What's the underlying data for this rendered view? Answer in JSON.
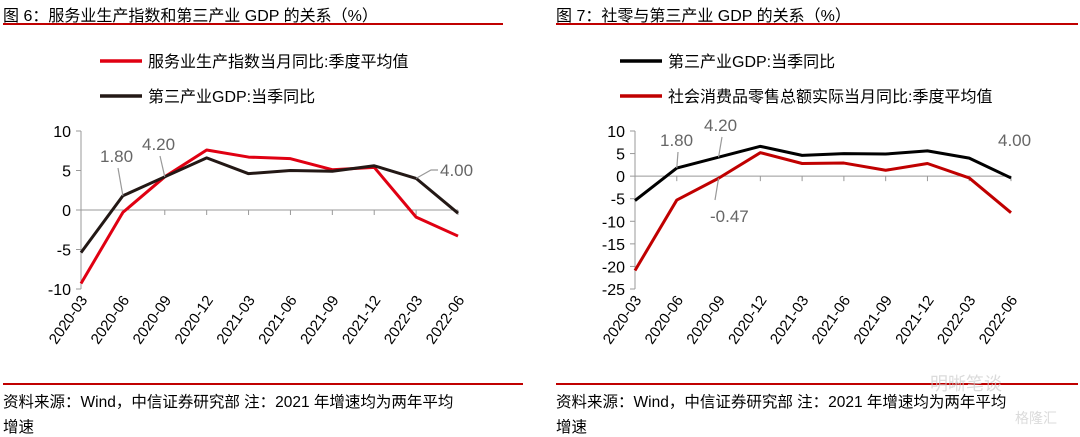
{
  "chart_data": [
    {
      "type": "line",
      "title": "图 6：服务业生产指数和第三产业 GDP 的关系（%）",
      "categories": [
        "2020-03",
        "2020-06",
        "2020-09",
        "2020-12",
        "2021-03",
        "2021-06",
        "2021-09",
        "2021-12",
        "2022-03",
        "2022-06"
      ],
      "ylim": [
        -10,
        10
      ],
      "yticks": [
        "10",
        "5",
        "0",
        "-5",
        "-10"
      ],
      "legend_placement": "top",
      "series": [
        {
          "name": "服务业生产指数当月同比:季度平均值",
          "color": "#e00012",
          "values": [
            -9.3,
            -0.3,
            4.2,
            7.6,
            6.7,
            6.5,
            5.1,
            5.4,
            -0.9,
            -3.3
          ]
        },
        {
          "name": "第三产业GDP:当季同比",
          "color": "#231815",
          "values": [
            -5.4,
            1.8,
            4.2,
            6.6,
            4.6,
            5.0,
            4.9,
            5.6,
            4.0,
            -0.4
          ]
        }
      ],
      "annotations": [
        "1.80",
        "4.20",
        "4.00"
      ],
      "source": "资料来源：Wind，中信证券研究部 注：2021 年增速均为两年平均",
      "source_cont": "增速"
    },
    {
      "type": "line",
      "title": "图 7：社零与第三产业 GDP 的关系（%）",
      "categories": [
        "2020-03",
        "2020-06",
        "2020-09",
        "2020-12",
        "2021-03",
        "2021-06",
        "2021-09",
        "2021-12",
        "2022-03",
        "2022-06"
      ],
      "ylim": [
        -25,
        10
      ],
      "yticks": [
        "10",
        "5",
        "0",
        "-5",
        "-10",
        "-15",
        "-20",
        "-25"
      ],
      "legend_placement": "top",
      "series": [
        {
          "name": "第三产业GDP:当季同比",
          "color": "#000000",
          "values": [
            -5.4,
            1.8,
            4.2,
            6.6,
            4.6,
            5.0,
            4.9,
            5.6,
            4.0,
            -0.4
          ]
        },
        {
          "name": "社会消费品零售总额实际当月同比:季度平均值",
          "color": "#c00000",
          "values": [
            -20.9,
            -5.3,
            -0.47,
            5.2,
            2.8,
            2.9,
            1.3,
            2.8,
            -0.4,
            -8.1
          ]
        }
      ],
      "annotations": [
        "1.80",
        "4.20",
        "-0.47",
        "4.00"
      ],
      "source": "资料来源：Wind，中信证券研究部 注：2021 年增速均为两年平均",
      "source_cont": "增速"
    }
  ],
  "watermark": {
    "text1": "明晰笔谈",
    "text2": "格隆汇"
  }
}
